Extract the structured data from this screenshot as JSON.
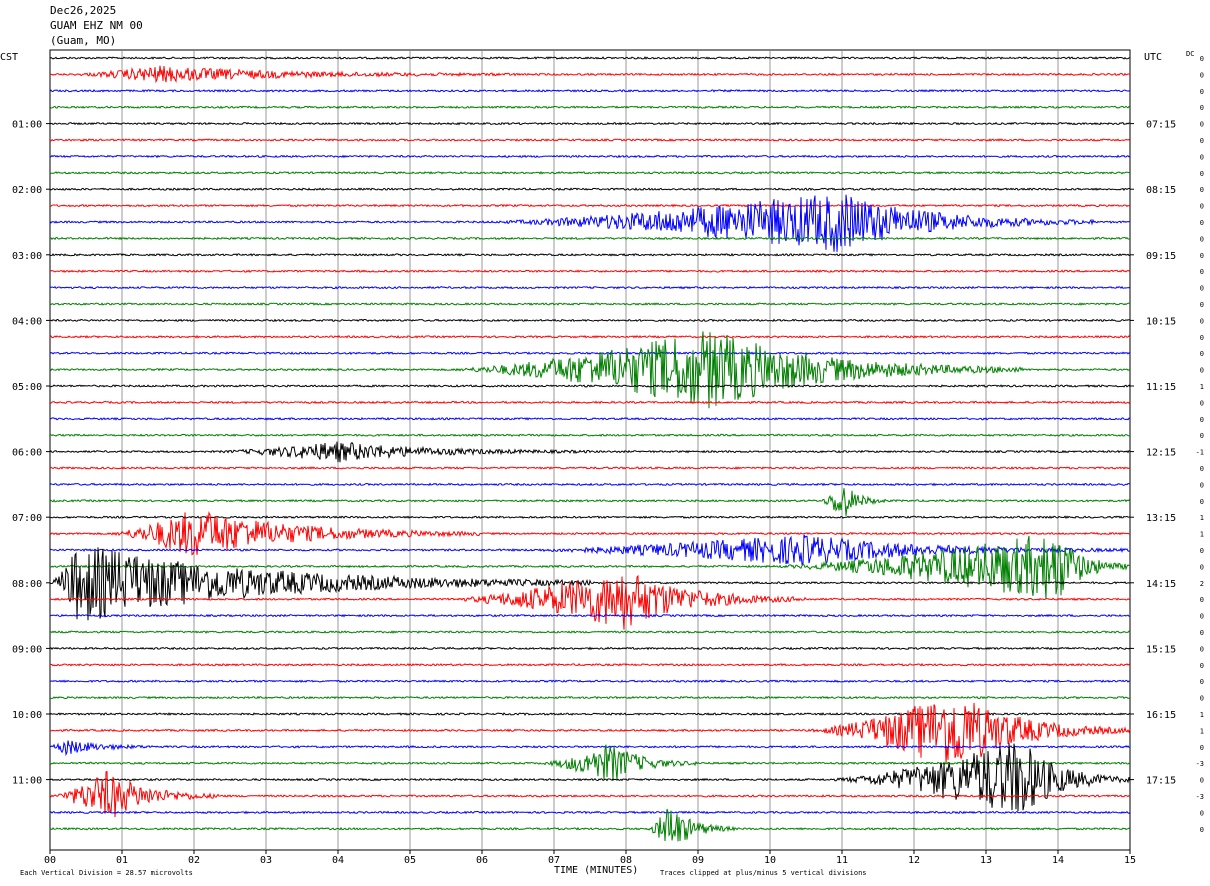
{
  "header": {
    "date": "Dec26,2025",
    "station": "GUAM EHZ NM 00",
    "location": "(Guam, MO)"
  },
  "left_timezone": "CST",
  "right_timezone": "UTC",
  "dc_label": "DC",
  "footer": {
    "vertical_division": "Each Vertical Division =   28.57 microvolts",
    "xlabel": "TIME (MINUTES)",
    "clip_note": "Traces clipped at plus/minus 5 vertical divisions"
  },
  "colors": {
    "trace_cycle": [
      "#000000",
      "#ff0000",
      "#0000ff",
      "#008000"
    ],
    "grid": "#808080"
  },
  "chart_data": {
    "type": "line",
    "title": "GUAM EHZ NM 00",
    "xlabel": "TIME (MINUTES)",
    "x_ticks": [
      "00",
      "01",
      "02",
      "03",
      "04",
      "05",
      "06",
      "07",
      "08",
      "09",
      "10",
      "11",
      "12",
      "13",
      "14",
      "15"
    ],
    "xlim": [
      0,
      15
    ],
    "rows": 48,
    "minutes_per_row": 15,
    "left_hour_labels": [
      {
        "row": 4,
        "label": "01:00"
      },
      {
        "row": 8,
        "label": "02:00"
      },
      {
        "row": 12,
        "label": "03:00"
      },
      {
        "row": 16,
        "label": "04:00"
      },
      {
        "row": 20,
        "label": "05:00"
      },
      {
        "row": 24,
        "label": "06:00"
      },
      {
        "row": 28,
        "label": "07:00"
      },
      {
        "row": 32,
        "label": "08:00"
      },
      {
        "row": 36,
        "label": "09:00"
      },
      {
        "row": 40,
        "label": "10:00"
      },
      {
        "row": 44,
        "label": "11:00"
      }
    ],
    "right_hour_labels": [
      {
        "row": 4,
        "label": "07:15"
      },
      {
        "row": 8,
        "label": "08:15"
      },
      {
        "row": 12,
        "label": "09:15"
      },
      {
        "row": 16,
        "label": "10:15"
      },
      {
        "row": 20,
        "label": "11:15"
      },
      {
        "row": 24,
        "label": "12:15"
      },
      {
        "row": 28,
        "label": "13:15"
      },
      {
        "row": 32,
        "label": "14:15"
      },
      {
        "row": 36,
        "label": "15:15"
      },
      {
        "row": 40,
        "label": "16:15"
      },
      {
        "row": 44,
        "label": "17:15"
      }
    ],
    "dc_offsets": [
      0,
      0,
      0,
      0,
      0,
      0,
      0,
      0,
      0,
      0,
      0,
      0,
      0,
      0,
      0,
      0,
      0,
      0,
      0,
      0,
      1,
      0,
      0,
      0,
      -1,
      0,
      0,
      0,
      1,
      1,
      0,
      0,
      2,
      0,
      0,
      0,
      0,
      0,
      0,
      0,
      1,
      1,
      0,
      -3,
      0,
      -3,
      0,
      0
    ],
    "events": [
      {
        "row": 1,
        "start": 0.3,
        "peak": 1.5,
        "end": 6.5,
        "amp": 8
      },
      {
        "row": 10,
        "start": 6.0,
        "peak": 11.0,
        "end": 14.5,
        "amp": 30
      },
      {
        "row": 19,
        "start": 5.5,
        "peak": 9.2,
        "end": 13.5,
        "amp": 40
      },
      {
        "row": 24,
        "start": 2.3,
        "peak": 4.0,
        "end": 7.5,
        "amp": 10
      },
      {
        "row": 27,
        "start": 10.7,
        "peak": 11.0,
        "end": 11.6,
        "amp": 20
      },
      {
        "row": 29,
        "start": 0.8,
        "peak": 2.0,
        "end": 6.0,
        "amp": 25
      },
      {
        "row": 30,
        "start": 6.5,
        "peak": 10.5,
        "end": 15.0,
        "amp": 15
      },
      {
        "row": 31,
        "start": 10.0,
        "peak": 14.0,
        "end": 15.0,
        "amp": 35
      },
      {
        "row": 32,
        "start": 0.0,
        "peak": 0.4,
        "end": 7.5,
        "amp": 40
      },
      {
        "row": 33,
        "start": 5.5,
        "peak": 8.0,
        "end": 10.5,
        "amp": 30
      },
      {
        "row": 41,
        "start": 10.5,
        "peak": 12.6,
        "end": 15.0,
        "amp": 40
      },
      {
        "row": 42,
        "start": 0.0,
        "peak": 0.2,
        "end": 1.5,
        "amp": 8
      },
      {
        "row": 43,
        "start": 6.8,
        "peak": 7.8,
        "end": 9.0,
        "amp": 20
      },
      {
        "row": 44,
        "start": 10.8,
        "peak": 13.5,
        "end": 15.0,
        "amp": 40
      },
      {
        "row": 45,
        "start": 0.0,
        "peak": 0.8,
        "end": 2.4,
        "amp": 25
      },
      {
        "row": 47,
        "start": 8.3,
        "peak": 8.6,
        "end": 9.5,
        "amp": 25
      }
    ]
  }
}
